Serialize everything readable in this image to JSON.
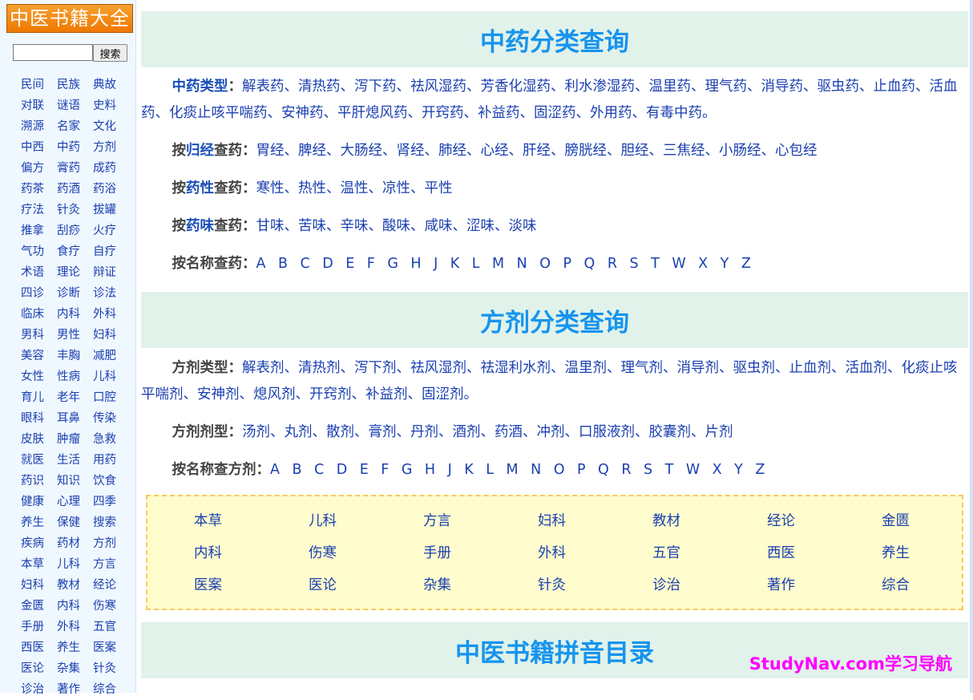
{
  "sidebar": {
    "logo": "中医书籍大全",
    "search_placeholder": "",
    "search_button": "搜索",
    "links": [
      "民间",
      "民族",
      "典故",
      "对联",
      "谜语",
      "史料",
      "溯源",
      "名家",
      "文化",
      "中西",
      "中药",
      "方剂",
      "偏方",
      "膏药",
      "成药",
      "药茶",
      "药酒",
      "药浴",
      "疗法",
      "针灸",
      "拔罐",
      "推拿",
      "刮痧",
      "火疗",
      "气功",
      "食疗",
      "自疗",
      "术语",
      "理论",
      "辩证",
      "四诊",
      "诊断",
      "诊法",
      "临床",
      "内科",
      "外科",
      "男科",
      "男性",
      "妇科",
      "美容",
      "丰胸",
      "减肥",
      "女性",
      "性病",
      "儿科",
      "育儿",
      "老年",
      "口腔",
      "眼科",
      "耳鼻",
      "传染",
      "皮肤",
      "肿瘤",
      "急救",
      "就医",
      "生活",
      "用药",
      "药识",
      "知识",
      "饮食",
      "健康",
      "心理",
      "四季",
      "养生",
      "保健",
      "搜索",
      "疾病",
      "药材",
      "方剂",
      "本草",
      "儿科",
      "方言",
      "妇科",
      "教材",
      "经论",
      "金匮",
      "内科",
      "伤寒",
      "手册",
      "外科",
      "五官",
      "西医",
      "养生",
      "医案",
      "医论",
      "杂集",
      "针灸",
      "诊治",
      "著作",
      "综合"
    ]
  },
  "sections": [
    {
      "title": "中药分类查询",
      "rows": [
        {
          "pre": "",
          "hl": "中药类型",
          "post": "",
          "colon": "：",
          "items": [
            "解表药",
            "清热药",
            "泻下药",
            "祛风湿药",
            "芳香化湿药",
            "利水渗湿药",
            "温里药",
            "理气药",
            "消导药",
            "驱虫药",
            "止血药",
            "活血药",
            "化痰止咳平喘药",
            "安神药",
            "平肝熄风药",
            "开窍药",
            "补益药",
            "固涩药",
            "外用药",
            "有毒中药"
          ],
          "sep": "、",
          "end": "。"
        },
        {
          "pre": "按",
          "hl": "归经",
          "post": "查药",
          "colon": "：",
          "items": [
            "胃经",
            "脾经",
            "大肠经",
            "肾经",
            "肺经",
            "心经",
            "肝经",
            "膀胱经",
            "胆经",
            "三焦经",
            "小肠经",
            "心包经"
          ],
          "sep": "、",
          "end": ""
        },
        {
          "pre": "按",
          "hl": "药性",
          "post": "查药",
          "colon": "：",
          "items": [
            "寒性",
            "热性",
            "温性",
            "凉性",
            "平性"
          ],
          "sep": "、",
          "end": ""
        },
        {
          "pre": "按",
          "hl": "药味",
          "post": "查药",
          "colon": "：",
          "items": [
            "甘味",
            "苦味",
            "辛味",
            "酸味",
            "咸味",
            "涩味",
            "淡味"
          ],
          "sep": "、",
          "end": ""
        },
        {
          "pre": "按名称查药",
          "hl": "",
          "post": "",
          "colon": "：",
          "letters": true,
          "items": [
            "A",
            "B",
            "C",
            "D",
            "E",
            "F",
            "G",
            "H",
            "J",
            "K",
            "L",
            "M",
            "N",
            "O",
            "P",
            "Q",
            "R",
            "S",
            "T",
            "W",
            "X",
            "Y",
            "Z"
          ],
          "sep": "",
          "end": ""
        }
      ]
    },
    {
      "title": "方剂分类查询",
      "rows": [
        {
          "pre": "方剂类型",
          "hl": "",
          "post": "",
          "colon": "：",
          "items": [
            "解表剂",
            "清热剂",
            "泻下剂",
            "祛风湿剂",
            "祛湿利水剂",
            "温里剂",
            "理气剂",
            "消导剂",
            "驱虫剂",
            "止血剂",
            "活血剂",
            "化痰止咳平喘剂",
            "安神剂",
            "熄风剂",
            "开窍剂",
            "补益剂",
            "固涩剂"
          ],
          "sep": "、",
          "end": "。"
        },
        {
          "pre": "方剂剂型",
          "hl": "",
          "post": "",
          "colon": "：",
          "items": [
            "汤剂",
            "丸剂",
            "散剂",
            "膏剂",
            "丹剂",
            "酒剂",
            "药酒",
            "冲剂",
            "口服液剂",
            "胶囊剂",
            "片剂"
          ],
          "sep": "、",
          "end": ""
        },
        {
          "pre": "按名称查方剂",
          "hl": "",
          "post": "",
          "colon": "：",
          "letters": true,
          "items": [
            "A",
            "B",
            "C",
            "D",
            "E",
            "F",
            "G",
            "H",
            "J",
            "K",
            "L",
            "M",
            "N",
            "O",
            "P",
            "Q",
            "R",
            "S",
            "T",
            "W",
            "X",
            "Y",
            "Z"
          ],
          "sep": "",
          "end": ""
        }
      ]
    }
  ],
  "book_categories": [
    "本草",
    "儿科",
    "方言",
    "妇科",
    "教材",
    "经论",
    "金匮",
    "内科",
    "伤寒",
    "手册",
    "外科",
    "五官",
    "西医",
    "养生",
    "医案",
    "医论",
    "杂集",
    "针灸",
    "诊治",
    "著作",
    "综合"
  ],
  "pinyin_title": "中医书籍拼音目录",
  "watermark": "StudyNav.com学习导航",
  "colors": {
    "heading": "#1694ee",
    "link": "#1a3fb0",
    "band": "#e1f2ea",
    "logo": "#ee7800",
    "box": "#fffccd",
    "watermark": "#ff00ff"
  }
}
